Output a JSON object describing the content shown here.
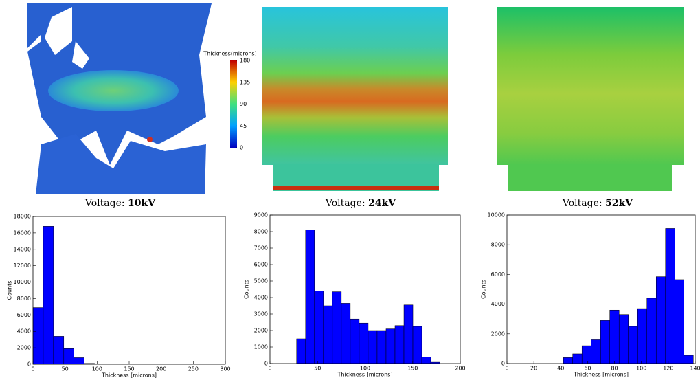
{
  "heatmaps": [
    {
      "caption_label": "Voltage:",
      "voltage": "10kV"
    },
    {
      "caption_label": "Voltage:",
      "voltage": "24kV"
    },
    {
      "caption_label": "Voltage:",
      "voltage": "52kV"
    }
  ],
  "colorbar": {
    "label": "Thickness(microns)",
    "ylim": [
      0,
      180
    ],
    "yticks": [
      0,
      45,
      90,
      135,
      180
    ]
  },
  "chart_data": [
    {
      "type": "histogram",
      "xlabel": "Thickness [microns]",
      "ylabel": "Counts",
      "color": "#0000ff",
      "bins": [
        0,
        16,
        32,
        48,
        64,
        80,
        96
      ],
      "values": [
        6900,
        16800,
        3400,
        1900,
        800,
        100
      ],
      "xlim": [
        0,
        300
      ],
      "xticks": [
        0,
        50,
        100,
        150,
        200,
        250,
        300
      ],
      "ylim": [
        0,
        18000
      ],
      "yticks": [
        0,
        2000,
        4000,
        6000,
        8000,
        10000,
        12000,
        14000,
        16000,
        18000
      ]
    },
    {
      "type": "histogram",
      "xlabel": "Thickness [microns]",
      "ylabel": "Counts",
      "color": "#0000ff",
      "bins": [
        28,
        37.4,
        46.8,
        56.2,
        65.6,
        75,
        84.4,
        93.8,
        103.2,
        112.6,
        122,
        131.4,
        140.8,
        150.2,
        159.6,
        169,
        178.4
      ],
      "values": [
        1500,
        8100,
        4400,
        3500,
        4350,
        3650,
        2700,
        2450,
        2000,
        2000,
        2100,
        2300,
        3550,
        2250,
        400,
        80
      ],
      "xlim": [
        0,
        200
      ],
      "xticks": [
        0,
        50,
        100,
        150,
        200
      ],
      "ylim": [
        0,
        9000
      ],
      "yticks": [
        0,
        1000,
        2000,
        3000,
        4000,
        5000,
        6000,
        7000,
        8000,
        9000
      ]
    },
    {
      "type": "histogram",
      "xlabel": "Thickness [microns]",
      "ylabel": "Counts",
      "color": "#0000ff",
      "bins": [
        42,
        48.9,
        55.8,
        62.7,
        69.6,
        76.5,
        83.4,
        90.3,
        97.2,
        104.1,
        111,
        117.9,
        124.8,
        131.7,
        138.6
      ],
      "values": [
        400,
        650,
        1200,
        1600,
        2900,
        3600,
        3300,
        2500,
        3700,
        4400,
        5850,
        9100,
        5650,
        550
      ],
      "xlim": [
        0,
        140
      ],
      "xticks": [
        0,
        20,
        40,
        60,
        80,
        100,
        120,
        140
      ],
      "ylim": [
        0,
        10000
      ],
      "yticks": [
        0,
        2000,
        4000,
        6000,
        8000,
        10000
      ]
    }
  ]
}
